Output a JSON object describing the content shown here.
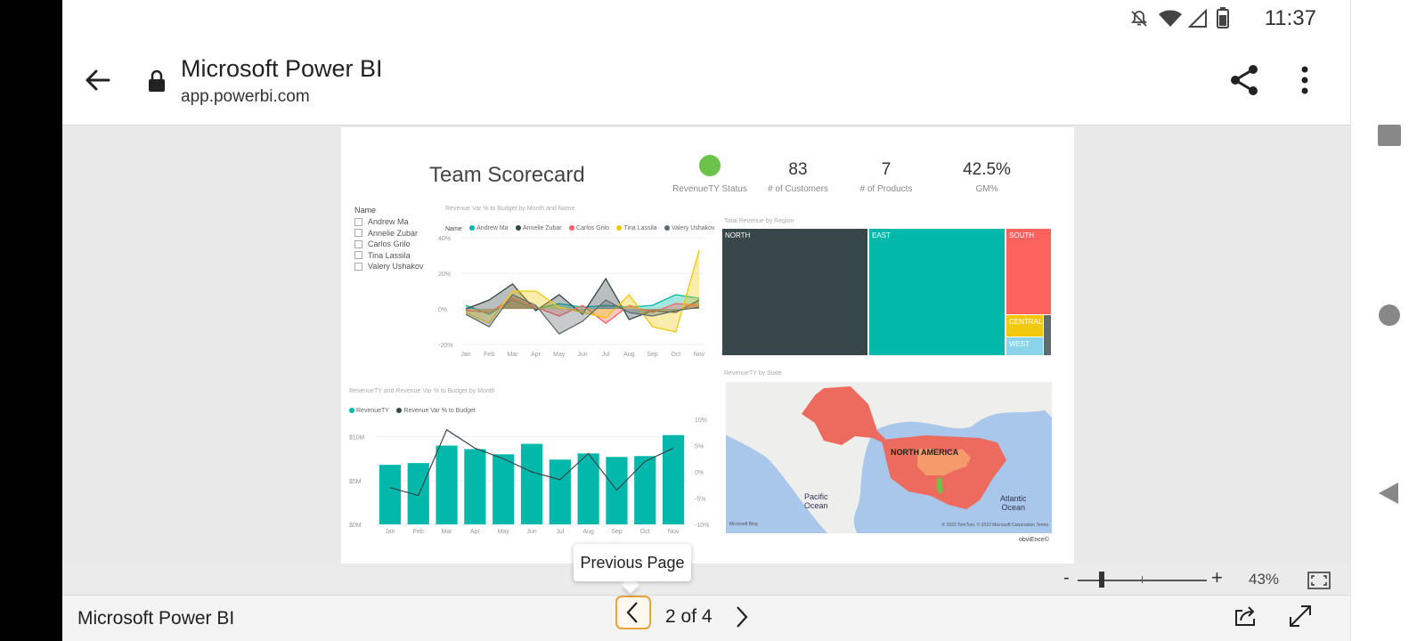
{
  "status_bar": {
    "time": "11:37",
    "icons": [
      "notifications-off-icon",
      "wifi-icon",
      "cellular-signal-icon",
      "battery-icon"
    ]
  },
  "browser": {
    "title": "Microsoft Power BI",
    "url": "app.powerbi.com"
  },
  "report": {
    "title": "Team Scorecard",
    "kpis": [
      {
        "value": "",
        "label": "RevenueTY Status",
        "status_color": "#6cc24a"
      },
      {
        "value": "83",
        "label": "# of Customers"
      },
      {
        "value": "7",
        "label": "# of Products"
      },
      {
        "value": "42.5%",
        "label": "GM%"
      }
    ],
    "slicer": {
      "title": "Name",
      "items": [
        "Andrew Ma",
        "Annelie Zubar",
        "Carlos Grilo",
        "Tina Lassila",
        "Valery Ushakov"
      ]
    },
    "line_chart": {
      "title": "Revenue Var % to Budget by Month and Name",
      "legend_title": "Name",
      "legend": [
        "Andrew Ma",
        "Annelie Zubar",
        "Carlos Grilo",
        "Tina Lassila",
        "Valery Ushakov"
      ]
    },
    "treemap": {
      "title": "Total Revenue by Region",
      "labels": [
        "NORTH",
        "EAST",
        "SOUTH",
        "CENTRAL",
        "WEST"
      ]
    },
    "combo_chart": {
      "title": "RevenueTY and Revenue Var % to Budget by Month",
      "legend": [
        "RevenueTY",
        "Revenue Var % to Budget"
      ]
    },
    "map": {
      "title": "RevenueTY by State",
      "continent_label": "NORTH AMERICA",
      "pacific_label_1": "Pacific",
      "pacific_label_2": "Ocean",
      "atlantic_label_1": "Atlantic",
      "atlantic_label_2": "Ocean",
      "attribution": "© 2022 TomTom, © 2022 Microsoft Corporation  Terms",
      "bing_logo": "Microsoft Bing"
    },
    "branding": "obviEnce©"
  },
  "chart_data": [
    {
      "type": "line",
      "title": "Revenue Var % to Budget by Month and Name",
      "categories": [
        "Jan",
        "Feb",
        "Mar",
        "Apr",
        "May",
        "Jun",
        "Jul",
        "Aug",
        "Sep",
        "Oct",
        "Nov"
      ],
      "ylim": [
        -20,
        40
      ],
      "yticks": [
        "40%",
        "20%",
        "0%",
        "-20%"
      ],
      "series": [
        {
          "name": "Andrew Ma",
          "color": "#01b8aa",
          "values": [
            2,
            -3,
            5,
            0,
            3,
            1,
            2,
            1,
            2,
            8,
            6
          ]
        },
        {
          "name": "Annelie Zubar",
          "color": "#374649",
          "values": [
            0,
            5,
            14,
            -1,
            8,
            -3,
            17,
            -6,
            -1,
            -2,
            5
          ]
        },
        {
          "name": "Carlos Grilo",
          "color": "#fd625e",
          "values": [
            -1,
            -2,
            6,
            1,
            -4,
            2,
            -8,
            2,
            -2,
            3,
            2
          ]
        },
        {
          "name": "Tina Lassila",
          "color": "#f2c80f",
          "values": [
            -2,
            -8,
            10,
            10,
            1,
            -2,
            -5,
            8,
            -10,
            -13,
            33
          ]
        },
        {
          "name": "Valery Ushakov",
          "color": "#5f6b6d",
          "values": [
            -3,
            -10,
            8,
            2,
            -14,
            -7,
            5,
            -2,
            -4,
            -1,
            1
          ]
        }
      ]
    },
    {
      "type": "bar",
      "title": "RevenueTY and Revenue Var % to Budget by Month",
      "categories": [
        "Jan",
        "Feb",
        "Mar",
        "Apr",
        "May",
        "Jun",
        "Jul",
        "Aug",
        "Sep",
        "Oct",
        "Nov"
      ],
      "series": [
        {
          "name": "RevenueTY",
          "axis": "left",
          "values": [
            6.8,
            7.0,
            9.0,
            8.6,
            8.0,
            9.2,
            7.4,
            8.1,
            7.7,
            7.8,
            10.2
          ]
        },
        {
          "name": "Revenue Var % to Budget",
          "axis": "right",
          "type": "line",
          "values": [
            -3.0,
            -4.5,
            8.0,
            4.5,
            2.5,
            0.0,
            -1.5,
            3.5,
            -3.5,
            2.0,
            4.5
          ]
        }
      ],
      "ylim_left": [
        0,
        12
      ],
      "yticks_left": [
        "$10M",
        "$5M",
        "$0M"
      ],
      "ylim_right": [
        -10,
        10
      ],
      "yticks_right": [
        "10%",
        "5%",
        "0%",
        "-5%",
        "-10%"
      ]
    },
    {
      "type": "treemap",
      "title": "Total Revenue by Region",
      "categories": [
        "NORTH",
        "EAST",
        "SOUTH",
        "CENTRAL",
        "WEST"
      ],
      "colors": [
        "#374649",
        "#01b8aa",
        "#fd625e",
        "#f2c80f",
        "#8ad4eb"
      ]
    }
  ],
  "zoom": {
    "minus": "-",
    "plus": "+",
    "level": "43%"
  },
  "footer": {
    "title": "Microsoft Power BI",
    "page_indicator": "2 of 4"
  },
  "tooltip": {
    "text": "Previous Page"
  }
}
